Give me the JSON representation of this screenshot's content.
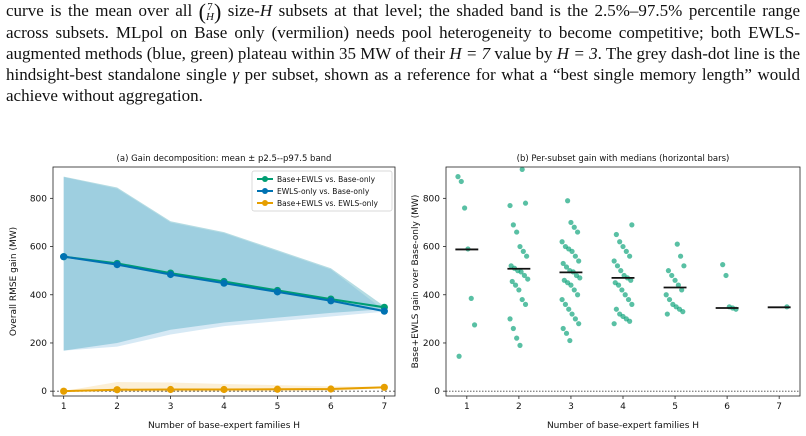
{
  "caption": {
    "line1_a": "curve is the mean over all",
    "binom_top": "7",
    "binom_bottom": "H",
    "line1_b": "size-",
    "line1_var": "H",
    "line1_c": "subsets at that level; the shaded band is the",
    "line1_range": "2.5%–97.5%",
    "rest": "percentile range across subsets. MLpol on Base only (vermilion) needs pool heterogeneity to become competitive; both EWLS-augmented methods (blue, green) plateau within",
    "rest_value": "35 MW",
    "rest_b": "of their",
    "rest_h": "H = 7",
    "rest_c": "value by",
    "rest_h3": "H = 3",
    "rest_d": ". The grey dash-dot line is the hindsight-best standalone single",
    "rest_gamma": "γ",
    "rest_e": "per subset, shown as a reference for what a “best single memory length” would achieve without aggregation."
  },
  "chart_data": [
    {
      "type": "line",
      "title": "(a) Gain decomposition: mean ± p2.5--p97.5 band",
      "xlabel": "Number of base-expert families H",
      "ylabel": "Overall RMSE gain (MW)",
      "x": [
        1,
        2,
        3,
        4,
        5,
        6,
        7
      ],
      "xlim": [
        0.8,
        7.2
      ],
      "ylim": [
        -20,
        930
      ],
      "yticks": [
        0,
        200,
        400,
        600,
        800
      ],
      "legend_position": "top-right",
      "series": [
        {
          "name": "Base+EWLS vs. Base-only",
          "color": "#009e73",
          "values": [
            558,
            530,
            490,
            455,
            418,
            382,
            348
          ],
          "band_low": [
            168,
            200,
            255,
            285,
            305,
            325,
            340
          ],
          "band_high": [
            890,
            845,
            705,
            660,
            585,
            510,
            352
          ]
        },
        {
          "name": "EWLS-only vs. Base-only",
          "color": "#0072b2",
          "values": [
            558,
            525,
            484,
            448,
            412,
            375,
            332
          ],
          "band_low": [
            168,
            185,
            235,
            270,
            290,
            310,
            330
          ],
          "band_high": [
            888,
            840,
            700,
            655,
            580,
            505,
            335
          ]
        },
        {
          "name": "Base+EWLS vs. EWLS-only",
          "color": "#e69f00",
          "values": [
            0,
            6,
            7,
            7,
            8,
            9,
            16
          ],
          "band_low": [
            0,
            -4,
            -4,
            -3,
            -2,
            0,
            12
          ],
          "band_high": [
            0,
            38,
            36,
            30,
            25,
            20,
            18
          ]
        }
      ]
    },
    {
      "type": "scatter",
      "title": "(b) Per-subset gain with medians (horizontal bars)",
      "xlabel": "Number of base-expert families H",
      "ylabel": "Base+EWLS gain over Base-only (MW)",
      "xlim": [
        0.6,
        7.4
      ],
      "ylim": [
        -20,
        930
      ],
      "yticks": [
        0,
        200,
        400,
        600,
        800
      ],
      "color": "#009e73",
      "categories": [
        1,
        2,
        3,
        4,
        5,
        6,
        7
      ],
      "medians": [
        588,
        508,
        493,
        470,
        430,
        345,
        348
      ],
      "points": [
        [
          890,
          870,
          760,
          590,
          385,
          275,
          145
        ],
        [
          920,
          780,
          770,
          690,
          660,
          600,
          580,
          560,
          520,
          510,
          500,
          495,
          480,
          465,
          455,
          440,
          420,
          380,
          360,
          300,
          260,
          220,
          190
        ],
        [
          790,
          700,
          680,
          660,
          620,
          600,
          590,
          580,
          560,
          540,
          530,
          515,
          500,
          495,
          480,
          470,
          460,
          450,
          440,
          420,
          400,
          380,
          360,
          340,
          320,
          300,
          280,
          260,
          240,
          210
        ],
        [
          690,
          650,
          620,
          600,
          580,
          560,
          540,
          520,
          500,
          480,
          470,
          460,
          450,
          440,
          420,
          400,
          380,
          360,
          340,
          320,
          310,
          300,
          290,
          280
        ],
        [
          610,
          560,
          520,
          500,
          480,
          460,
          440,
          420,
          400,
          380,
          360,
          350,
          340,
          330,
          320
        ],
        [
          525,
          480,
          350,
          345,
          340
        ],
        [
          350
        ]
      ]
    }
  ]
}
